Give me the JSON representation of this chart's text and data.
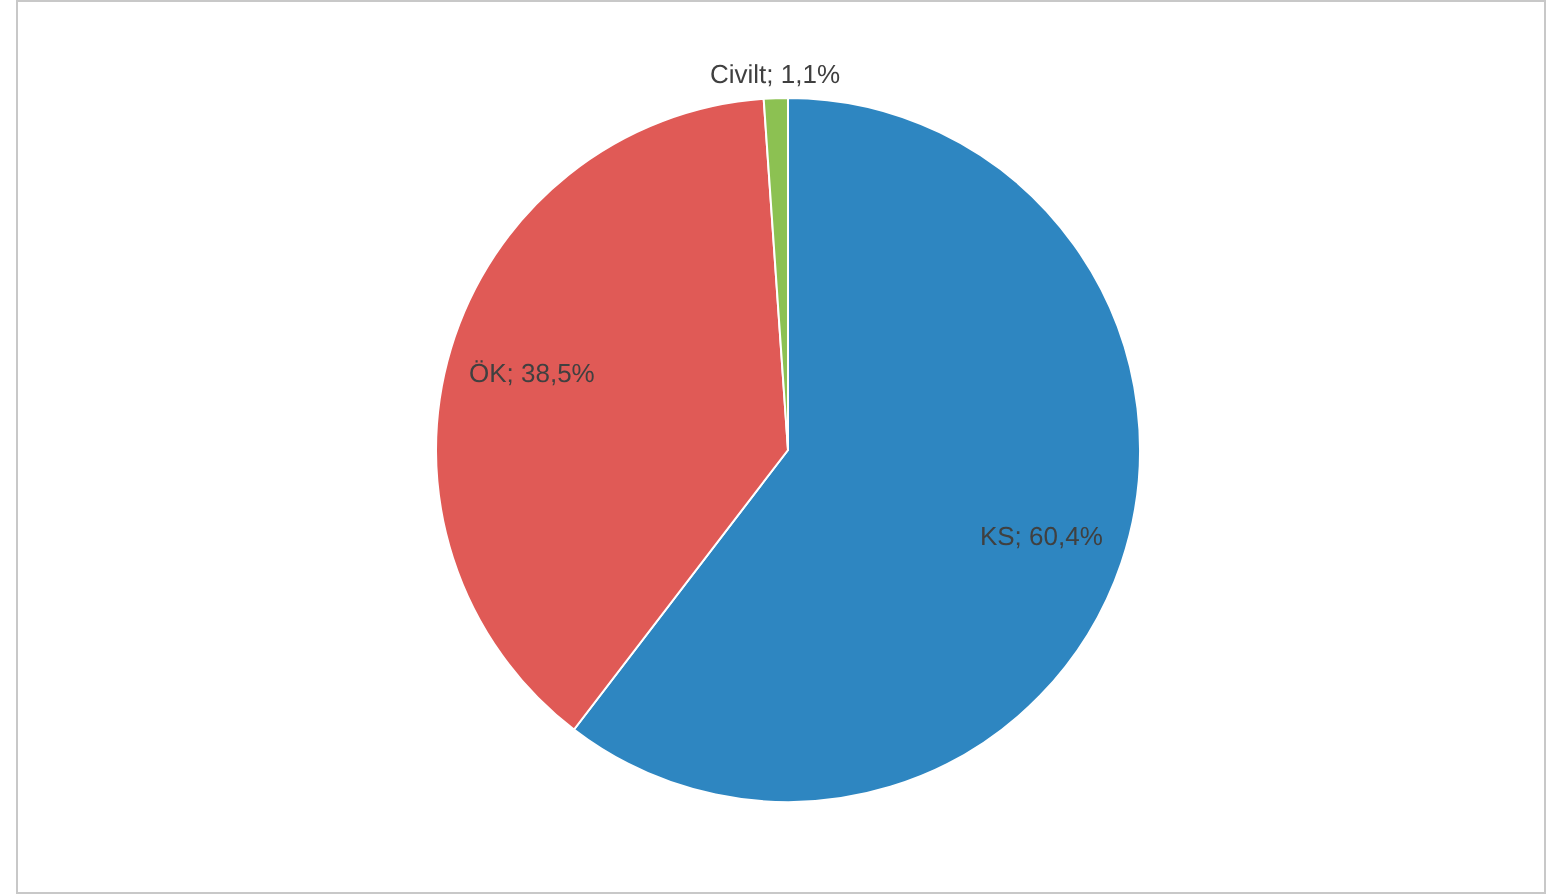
{
  "chart_data": {
    "type": "pie",
    "categories": [
      "KS",
      "ÖK",
      "Civilt"
    ],
    "values": [
      60.4,
      38.5,
      1.1
    ],
    "colors": [
      "#2e86c1",
      "#e05a56",
      "#8cc152"
    ],
    "value_labels": [
      "60,4%",
      "38,5%",
      "1,1%"
    ],
    "legend": false
  }
}
